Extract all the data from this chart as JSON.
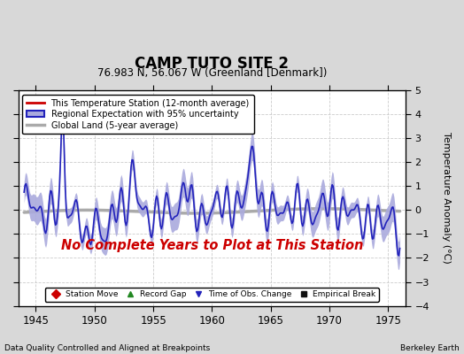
{
  "title": "CAMP TUTO SITE 2",
  "subtitle": "76.983 N, 56.067 W (Greenland [Denmark])",
  "xlabel_bottom": "Data Quality Controlled and Aligned at Breakpoints",
  "xlabel_right": "Berkeley Earth",
  "ylabel": "Temperature Anomaly (°C)",
  "no_data_text": "No Complete Years to Plot at This Station",
  "xlim": [
    1943.5,
    1976.5
  ],
  "ylim": [
    -4,
    5
  ],
  "xticks": [
    1945,
    1950,
    1955,
    1960,
    1965,
    1970,
    1975
  ],
  "yticks": [
    -4,
    -3,
    -2,
    -1,
    0,
    1,
    2,
    3,
    4,
    5
  ],
  "fig_bg_color": "#d8d8d8",
  "plot_bg_color": "#ffffff",
  "regional_line_color": "#2222bb",
  "regional_fill_color": "#aaaadd",
  "global_line_color": "#aaaaaa",
  "station_line_color": "#cc0000",
  "no_data_color": "#cc0000",
  "grid_color": "#cccccc",
  "legend1_items": [
    {
      "label": "This Temperature Station (12-month average)",
      "color": "#cc0000",
      "lw": 1.5
    },
    {
      "label": "Regional Expectation with 95% uncertainty",
      "color": "#2222bb",
      "fill": "#aaaadd"
    },
    {
      "label": "Global Land (5-year average)",
      "color": "#aaaaaa",
      "lw": 2.5
    }
  ],
  "legend2_items": [
    {
      "label": "Station Move",
      "marker": "D",
      "color": "#cc0000"
    },
    {
      "label": "Record Gap",
      "marker": "^",
      "color": "#228822"
    },
    {
      "label": "Time of Obs. Change",
      "marker": "v",
      "color": "#2222bb"
    },
    {
      "label": "Empirical Break",
      "marker": "s",
      "color": "#111111"
    }
  ]
}
